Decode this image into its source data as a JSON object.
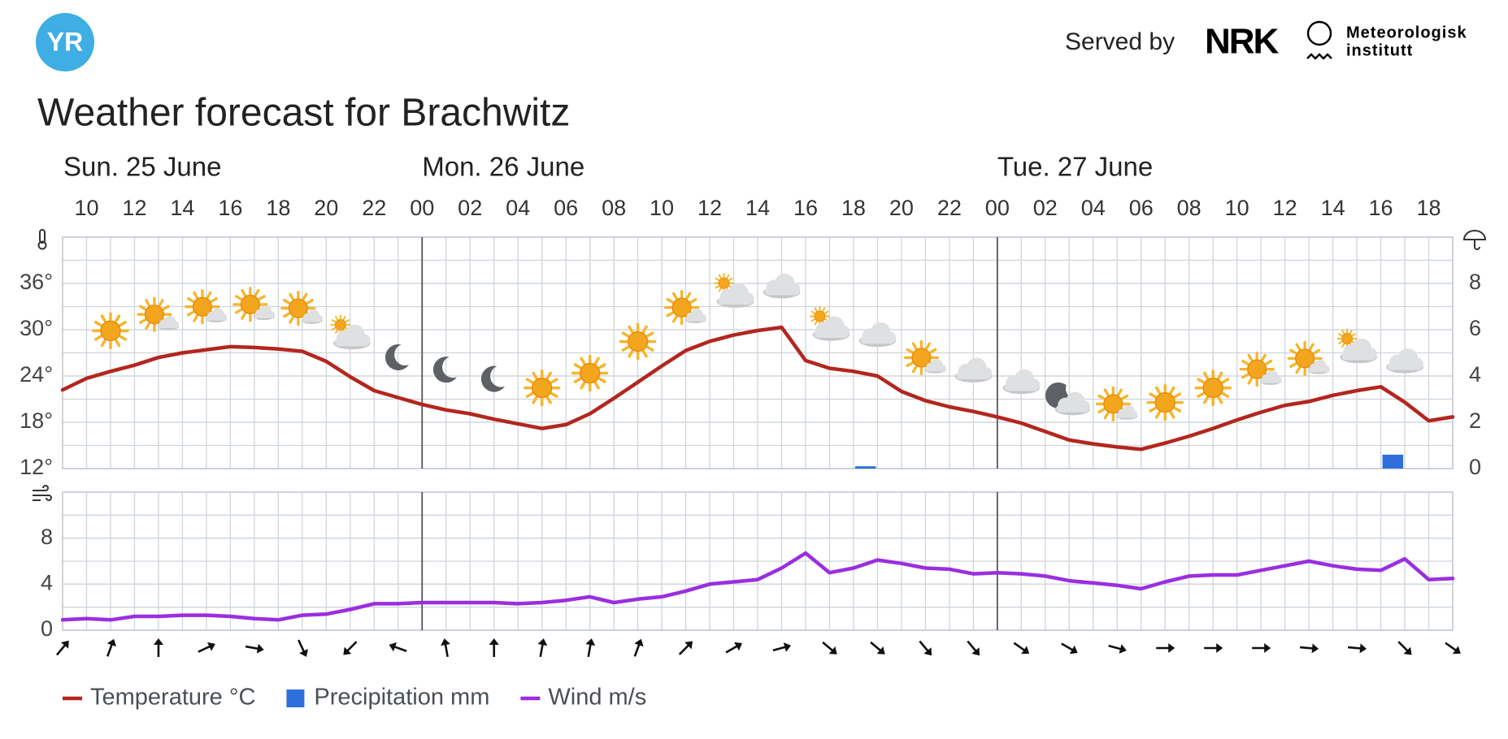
{
  "header": {
    "logo": "YR",
    "served_by": "Served by",
    "partner_1": "NRK",
    "partner_2": [
      "Meteorologisk",
      "institutt"
    ]
  },
  "chart_data": {
    "type": "line",
    "title": "Weather forecast for Brachwitz",
    "days": [
      "Sun. 25 June",
      "Mon. 26 June",
      "Tue. 27 June"
    ],
    "categories": [
      null,
      "10",
      null,
      "12",
      null,
      "14",
      null,
      "16",
      null,
      "18",
      null,
      "20",
      null,
      "22",
      null,
      "00",
      null,
      "02",
      null,
      "04",
      null,
      "06",
      null,
      "08",
      null,
      "10",
      null,
      "12",
      null,
      "14",
      null,
      "16",
      null,
      "18",
      null,
      "20",
      null,
      "22",
      null,
      "00",
      null,
      "02",
      null,
      "04",
      null,
      "06",
      null,
      "08",
      null,
      "10",
      null,
      "12",
      null,
      "14",
      null,
      "16",
      null,
      "18",
      null
    ],
    "ylim": [
      12,
      42
    ],
    "yticks": [
      {
        "value": 12,
        "label": "12°"
      },
      {
        "value": 18,
        "label": "18°"
      },
      {
        "value": 24,
        "label": "24°"
      },
      {
        "value": 30,
        "label": "30°"
      },
      {
        "value": 36,
        "label": "36°"
      }
    ],
    "y2lim": [
      0,
      10
    ],
    "y2ticks": [
      0,
      2,
      4,
      6,
      8
    ],
    "wind_ylim": [
      0,
      12
    ],
    "wind_yticks": [
      0,
      4,
      8
    ],
    "grid": true,
    "legend": "bottom-left",
    "series": [
      {
        "name": "Temperature °C",
        "color": "#b3261e",
        "values": [
          22.2,
          23.7,
          24.6,
          25.4,
          26.4,
          27.0,
          27.4,
          27.8,
          27.7,
          27.5,
          27.2,
          25.9,
          23.9,
          22.1,
          21.2,
          20.3,
          19.6,
          19.1,
          18.4,
          17.8,
          17.2,
          17.7,
          19.1,
          21.1,
          23.2,
          25.3,
          27.3,
          28.5,
          29.3,
          29.9,
          30.3,
          26.0,
          25.0,
          24.6,
          24.0,
          22.0,
          20.8,
          20.0,
          19.4,
          18.7,
          17.9,
          16.8,
          15.7,
          15.2,
          14.8,
          14.5,
          15.3,
          16.2,
          17.2,
          18.3,
          19.3,
          20.2,
          20.7,
          21.5,
          22.1,
          22.6,
          20.6,
          18.2,
          18.7
        ]
      },
      {
        "name": "Precipitation mm",
        "color": "#2f6fdb",
        "type": "bar",
        "axis": "y2",
        "values": [
          0,
          0,
          0,
          0,
          0,
          0,
          0,
          0,
          0,
          0,
          0,
          0,
          0,
          0,
          0,
          0,
          0,
          0,
          0,
          0,
          0,
          0,
          0,
          0,
          0,
          0,
          0,
          0,
          0,
          0,
          0,
          0,
          0,
          0.1,
          0,
          0,
          0,
          0,
          0,
          0,
          0,
          0,
          0,
          0,
          0,
          0,
          0,
          0,
          0,
          0,
          0,
          0,
          0,
          0,
          0,
          0.6,
          0,
          0,
          0
        ]
      },
      {
        "name": "Wind m/s",
        "color": "#9b2ee0",
        "axis": "wind",
        "values": [
          0.9,
          1.0,
          0.9,
          1.2,
          1.2,
          1.3,
          1.3,
          1.2,
          1.0,
          0.9,
          1.3,
          1.4,
          1.8,
          2.3,
          2.3,
          2.4,
          2.4,
          2.4,
          2.4,
          2.3,
          2.4,
          2.6,
          2.9,
          2.4,
          2.7,
          2.9,
          3.4,
          4.0,
          4.2,
          4.4,
          5.4,
          6.7,
          5.0,
          5.4,
          6.1,
          5.8,
          5.4,
          5.3,
          4.9,
          5.0,
          4.9,
          4.7,
          4.3,
          4.1,
          3.9,
          3.6,
          4.2,
          4.7,
          4.8,
          4.8,
          5.2,
          5.6,
          6.0,
          5.6,
          5.3,
          5.2,
          6.2,
          4.4,
          4.5
        ]
      }
    ],
    "wind_direction": [
      40,
      null,
      20,
      null,
      0,
      null,
      65,
      null,
      100,
      null,
      155,
      null,
      225,
      null,
      290,
      null,
      350,
      null,
      0,
      null,
      10,
      null,
      10,
      null,
      20,
      null,
      45,
      null,
      60,
      null,
      75,
      null,
      130,
      null,
      130,
      null,
      140,
      null,
      140,
      null,
      125,
      null,
      120,
      null,
      105,
      null,
      90,
      null,
      90,
      null,
      90,
      null,
      95,
      null,
      95,
      null,
      135,
      null,
      125
    ]
  }
}
